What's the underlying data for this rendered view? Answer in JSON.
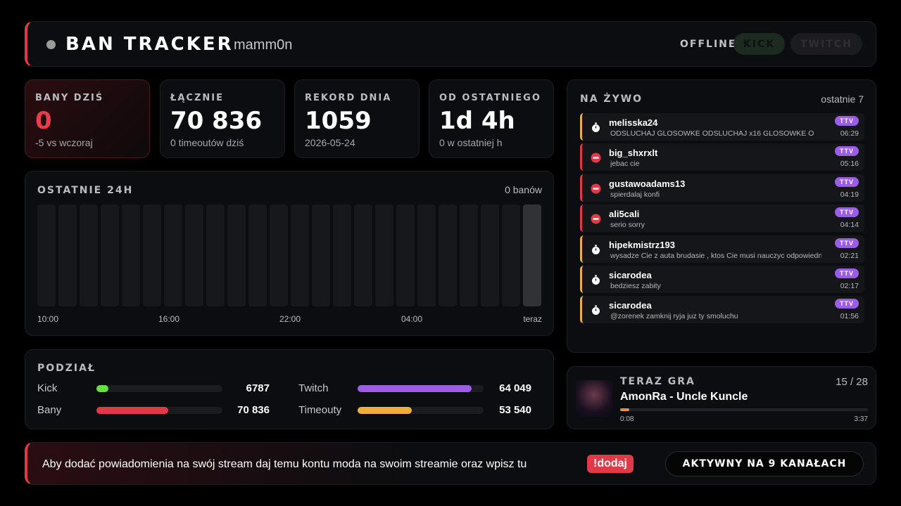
{
  "header": {
    "title": "BAN TRACKER",
    "user": "mamm0n",
    "status": "OFFLINE",
    "buttons": [
      "KICK",
      "TWITCH"
    ]
  },
  "cards": [
    {
      "label": "BANY DZIŚ",
      "value": "0",
      "note": "-5 vs wczoraj"
    },
    {
      "label": "ŁĄCZNIE",
      "value": "70 836",
      "note": "0 timeoutów dziś"
    },
    {
      "label": "REKORD DNIA",
      "value": "1059",
      "note": "2026-05-24"
    },
    {
      "label": "OD OSTATNIEGO",
      "value": "1d 4h",
      "note": "0 w ostatniej h"
    }
  ],
  "last24h": {
    "title": "OSTATNIE 24H",
    "total": "0 banów",
    "x_labels": [
      "10:00",
      "16:00",
      "22:00",
      "04:00",
      "teraz"
    ]
  },
  "split": {
    "title": "PODZIAŁ",
    "pairs": [
      [
        {
          "name": "Kick",
          "value": 6787,
          "label": "6787",
          "color": "#62e23c"
        },
        {
          "name": "Twitch",
          "value": 64049,
          "label": "64 049",
          "color": "#9b5de5"
        }
      ],
      [
        {
          "name": "Bany",
          "value": 70836,
          "label": "70 836",
          "color": "#e03a48"
        },
        {
          "name": "Timeouty",
          "value": 53540,
          "label": "53 540",
          "color": "#f0ad3c"
        }
      ]
    ]
  },
  "live": {
    "title": "NA ŻYWO",
    "subtitle": "ostatnie 7",
    "items": [
      {
        "user": "melisska24",
        "message": "ODSLUCHAJ GLOSOWKE ODSLUCHAJ x16 GLOSOWKE O",
        "badge": "TTV",
        "time": "06:29",
        "kind": "timeout"
      },
      {
        "user": "big_shxrxlt",
        "message": "jebac cie",
        "badge": "TTV",
        "time": "05:16",
        "kind": "ban"
      },
      {
        "user": "gustawoadams13",
        "message": "spierdalaj konfi",
        "badge": "TTV",
        "time": "04:19",
        "kind": "ban"
      },
      {
        "user": "ali5cali",
        "message": "serio sorry",
        "badge": "TTV",
        "time": "04:14",
        "kind": "ban"
      },
      {
        "user": "hipekmistrz193",
        "message": "wysadze Cie z auta brudasie , ktos Cie musi nauczyc odpowiedniej",
        "badge": "TTV",
        "time": "02:21",
        "kind": "timeout"
      },
      {
        "user": "sicarodea",
        "message": "bedziesz zabity",
        "badge": "TTV",
        "time": "02:17",
        "kind": "timeout"
      },
      {
        "user": "sicarodea",
        "message": "@zorenek zamknij ryja juz ty smoluchu",
        "badge": "TTV",
        "time": "01:56",
        "kind": "timeout"
      }
    ]
  },
  "player": {
    "title": "TERAZ GRA",
    "position": "15 / 28",
    "track": "AmonRa - Uncle Kuncle",
    "elapsed": "0:08",
    "duration": "3:37"
  },
  "footer": {
    "text": "Aby dodać powiadomienia na swój stream daj temu kontu moda na swoim streamie oraz wpisz tu",
    "command": "!dodaj",
    "status": "AKTYWNY NA 9 KANAŁACH"
  }
}
